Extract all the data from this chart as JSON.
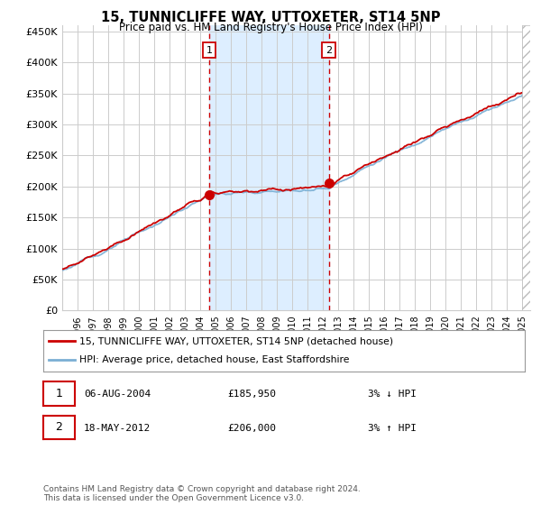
{
  "title": "15, TUNNICLIFFE WAY, UTTOXETER, ST14 5NP",
  "subtitle": "Price paid vs. HM Land Registry's House Price Index (HPI)",
  "ylabel_ticks": [
    "£0",
    "£50K",
    "£100K",
    "£150K",
    "£200K",
    "£250K",
    "£300K",
    "£350K",
    "£400K",
    "£450K"
  ],
  "ytick_values": [
    0,
    50000,
    100000,
    150000,
    200000,
    250000,
    300000,
    350000,
    400000,
    450000
  ],
  "ylim": [
    0,
    460000
  ],
  "xlim_start": 1995.0,
  "xlim_end": 2025.5,
  "sale1_x": 2004.6,
  "sale1_y": 185950,
  "sale2_x": 2012.37,
  "sale2_y": 206000,
  "hpi_line_color": "#7bafd4",
  "price_line_color": "#cc0000",
  "sale_dot_color": "#cc0000",
  "vline_color": "#cc0000",
  "shade_color": "#ddeeff",
  "grid_color": "#cccccc",
  "bg_color": "#ffffff",
  "legend_label1": "15, TUNNICLIFFE WAY, UTTOXETER, ST14 5NP (detached house)",
  "legend_label2": "HPI: Average price, detached house, East Staffordshire",
  "sale1_date": "06-AUG-2004",
  "sale1_price": "£185,950",
  "sale1_hpi": "3% ↓ HPI",
  "sale2_date": "18-MAY-2012",
  "sale2_price": "£206,000",
  "sale2_hpi": "3% ↑ HPI",
  "footnote": "Contains HM Land Registry data © Crown copyright and database right 2024.\nThis data is licensed under the Open Government Licence v3.0."
}
